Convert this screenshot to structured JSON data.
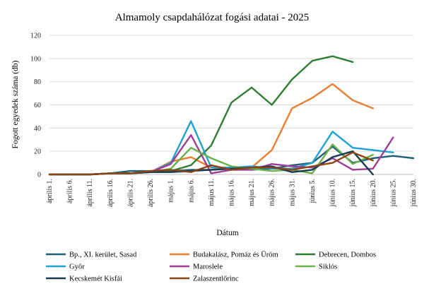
{
  "chart_data": {
    "type": "line",
    "title": "Almamoly csapdahálózat fogási adatai - 2025",
    "xlabel": "Dátum",
    "ylabel": "Fogott egyedek száma (db)",
    "ylim": [
      0,
      120
    ],
    "yticks": [
      0,
      20,
      40,
      60,
      80,
      100,
      120
    ],
    "grid": true,
    "legend_position": "bottom",
    "categories": [
      "április 1.",
      "április 6.",
      "április 11.",
      "április 16.",
      "április 21.",
      "április 26.",
      "május 1.",
      "május 6.",
      "május 11.",
      "május 16.",
      "május 21.",
      "május 26.",
      "május 31.",
      "június 5.",
      "június 10.",
      "június 15.",
      "június 20.",
      "június 25.",
      "június 30."
    ],
    "x": [
      0,
      5,
      10,
      15,
      20,
      25,
      30,
      35,
      40,
      45,
      50,
      55,
      60,
      65,
      70,
      75,
      80,
      85,
      90
    ],
    "series": [
      {
        "name": "Bp., XI. kerület, Sasad",
        "color": "#1f5f7a",
        "points": [
          [
            0,
            0
          ],
          [
            10,
            0
          ],
          [
            15,
            1
          ],
          [
            20,
            3
          ],
          [
            25,
            3
          ],
          [
            30,
            3
          ],
          [
            35,
            4
          ],
          [
            40,
            4
          ],
          [
            45,
            5
          ],
          [
            50,
            4
          ],
          [
            55,
            5
          ],
          [
            60,
            8
          ],
          [
            65,
            10
          ],
          [
            70,
            24
          ],
          [
            75,
            10
          ],
          [
            80,
            14
          ],
          [
            85,
            16
          ],
          [
            90,
            14
          ]
        ]
      },
      {
        "name": "Budakalász, Pomáz és Üröm",
        "color": "#ed7d31",
        "points": [
          [
            0,
            0
          ],
          [
            10,
            0
          ],
          [
            15,
            1
          ],
          [
            20,
            1
          ],
          [
            25,
            2
          ],
          [
            30,
            11
          ],
          [
            35,
            15
          ],
          [
            40,
            6
          ],
          [
            45,
            4
          ],
          [
            50,
            6
          ],
          [
            55,
            21
          ],
          [
            60,
            57
          ],
          [
            65,
            66
          ],
          [
            70,
            78
          ],
          [
            75,
            64
          ],
          [
            80,
            57
          ]
        ]
      },
      {
        "name": "Debrecen, Dombos",
        "color": "#2e7d32",
        "points": [
          [
            0,
            0
          ],
          [
            10,
            0
          ],
          [
            15,
            1
          ],
          [
            20,
            1
          ],
          [
            25,
            2
          ],
          [
            30,
            3
          ],
          [
            35,
            8
          ],
          [
            40,
            25
          ],
          [
            45,
            62
          ],
          [
            50,
            75
          ],
          [
            55,
            60
          ],
          [
            60,
            82
          ],
          [
            65,
            98
          ],
          [
            70,
            102
          ],
          [
            75,
            97
          ]
        ]
      },
      {
        "name": "Győr",
        "color": "#1ea0d2",
        "points": [
          [
            0,
            0
          ],
          [
            10,
            0
          ],
          [
            15,
            1
          ],
          [
            20,
            1
          ],
          [
            25,
            2
          ],
          [
            30,
            10
          ],
          [
            35,
            46
          ],
          [
            40,
            6
          ],
          [
            45,
            6
          ],
          [
            50,
            7
          ],
          [
            55,
            5
          ],
          [
            60,
            5
          ],
          [
            65,
            10
          ],
          [
            70,
            37
          ],
          [
            75,
            23
          ],
          [
            80,
            21
          ],
          [
            85,
            19
          ]
        ]
      },
      {
        "name": "Maroslele",
        "color": "#9e3d96",
        "points": [
          [
            0,
            0
          ],
          [
            10,
            0
          ],
          [
            15,
            1
          ],
          [
            20,
            1
          ],
          [
            25,
            2
          ],
          [
            30,
            9
          ],
          [
            35,
            34
          ],
          [
            40,
            1
          ],
          [
            45,
            4
          ],
          [
            50,
            4
          ],
          [
            55,
            9
          ],
          [
            60,
            7
          ],
          [
            65,
            6
          ],
          [
            70,
            14
          ],
          [
            75,
            4
          ],
          [
            80,
            5
          ],
          [
            85,
            32
          ]
        ]
      },
      {
        "name": "Siklós",
        "color": "#6ab04c",
        "points": [
          [
            0,
            0
          ],
          [
            10,
            0
          ],
          [
            15,
            1
          ],
          [
            20,
            1
          ],
          [
            25,
            2
          ],
          [
            30,
            5
          ],
          [
            35,
            23
          ],
          [
            40,
            14
          ],
          [
            45,
            7
          ],
          [
            50,
            5
          ],
          [
            55,
            3
          ],
          [
            60,
            4
          ],
          [
            65,
            1
          ],
          [
            70,
            26
          ],
          [
            75,
            9
          ],
          [
            80,
            17
          ]
        ]
      },
      {
        "name": "Kecskemét Kisfái",
        "color": "#173a52",
        "points": [
          [
            0,
            0
          ],
          [
            10,
            0
          ],
          [
            15,
            1
          ],
          [
            20,
            1
          ],
          [
            25,
            2
          ],
          [
            30,
            2
          ],
          [
            35,
            3
          ],
          [
            40,
            4
          ],
          [
            45,
            5
          ],
          [
            50,
            6
          ],
          [
            55,
            7
          ],
          [
            60,
            2
          ],
          [
            65,
            4
          ],
          [
            70,
            15
          ],
          [
            75,
            20
          ],
          [
            80,
            0
          ]
        ]
      },
      {
        "name": "Zalaszentlőrinc",
        "color": "#8b4513",
        "points": [
          [
            0,
            0
          ],
          [
            10,
            0
          ],
          [
            15,
            1
          ],
          [
            20,
            1
          ],
          [
            25,
            3
          ],
          [
            30,
            4
          ],
          [
            35,
            2
          ],
          [
            40,
            8
          ],
          [
            45,
            4
          ],
          [
            50,
            6
          ],
          [
            55,
            6
          ],
          [
            60,
            4
          ],
          [
            65,
            7
          ],
          [
            70,
            10
          ],
          [
            75,
            19
          ],
          [
            80,
            12
          ]
        ]
      }
    ]
  }
}
